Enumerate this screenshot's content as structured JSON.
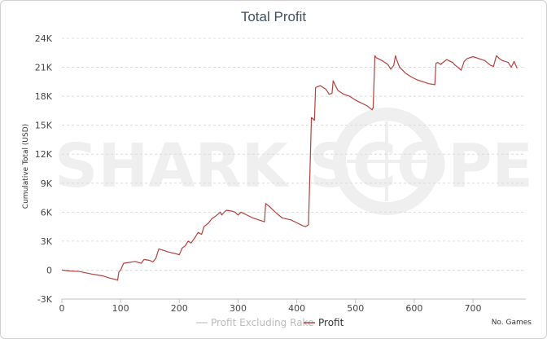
{
  "chart_data": {
    "type": "line",
    "title": "Total Profit",
    "xlabel": "No. Games",
    "ylabel": "Cumulative Total (USD)",
    "xlim": [
      0,
      790
    ],
    "ylim": [
      -3000,
      24000
    ],
    "x_ticks": [
      0,
      100,
      200,
      300,
      400,
      500,
      600,
      700
    ],
    "y_ticks": [
      -3000,
      0,
      3000,
      6000,
      9000,
      12000,
      15000,
      18000,
      21000,
      24000
    ],
    "y_tick_labels": [
      "-3K",
      "0",
      "3K",
      "6K",
      "9K",
      "12K",
      "15K",
      "18K",
      "21K",
      "24K"
    ],
    "grid": "horizontal dashed",
    "legend_position": "bottom-center",
    "series": [
      {
        "name": "Profit Excluding Rake",
        "color": "#d0d0d0",
        "x": [],
        "y": []
      },
      {
        "name": "Profit",
        "color": "#b5413d",
        "x": [
          0,
          15,
          30,
          50,
          60,
          70,
          80,
          90,
          95,
          97,
          100,
          105,
          115,
          125,
          135,
          140,
          150,
          155,
          160,
          165,
          170,
          175,
          180,
          190,
          200,
          205,
          210,
          215,
          220,
          228,
          232,
          238,
          242,
          250,
          255,
          262,
          270,
          272,
          275,
          280,
          290,
          295,
          300,
          305,
          315,
          325,
          335,
          345,
          347,
          355,
          365,
          375,
          390,
          400,
          410,
          415,
          420,
          425,
          430,
          432,
          440,
          450,
          455,
          460,
          462,
          465,
          470,
          480,
          490,
          500,
          510,
          520,
          528,
          530,
          533,
          535,
          545,
          555,
          560,
          565,
          568,
          570,
          575,
          585,
          595,
          605,
          615,
          625,
          635,
          637,
          640,
          645,
          655,
          665,
          670,
          680,
          685,
          690,
          700,
          710,
          720,
          730,
          735,
          740,
          745,
          750,
          760,
          765,
          770,
          775
        ],
        "y": [
          0,
          -100,
          -150,
          -400,
          -500,
          -600,
          -800,
          -950,
          -1050,
          -200,
          0,
          700,
          800,
          900,
          700,
          1100,
          1000,
          850,
          1200,
          2200,
          2100,
          2000,
          1900,
          1750,
          1600,
          2300,
          2500,
          3000,
          2800,
          3500,
          3900,
          3700,
          4500,
          4900,
          5300,
          5600,
          6000,
          5700,
          5900,
          6200,
          6100,
          6000,
          5700,
          6000,
          5700,
          5400,
          5200,
          5000,
          6900,
          6500,
          5900,
          5400,
          5200,
          4900,
          4600,
          4500,
          4700,
          15800,
          15500,
          18900,
          19100,
          18700,
          18200,
          18300,
          19600,
          19200,
          18600,
          18200,
          18000,
          17600,
          17300,
          17000,
          16600,
          16800,
          22200,
          22000,
          21700,
          21300,
          20800,
          21200,
          22200,
          21800,
          21000,
          20400,
          20000,
          19700,
          19500,
          19300,
          19200,
          21400,
          21500,
          21300,
          21800,
          21500,
          21200,
          20700,
          21600,
          21900,
          22100,
          21900,
          21700,
          21200,
          21100,
          22200,
          21900,
          21700,
          21500,
          21000,
          21600,
          20900
        ]
      }
    ]
  },
  "watermark": {
    "text": "SHARK SCOPE"
  }
}
